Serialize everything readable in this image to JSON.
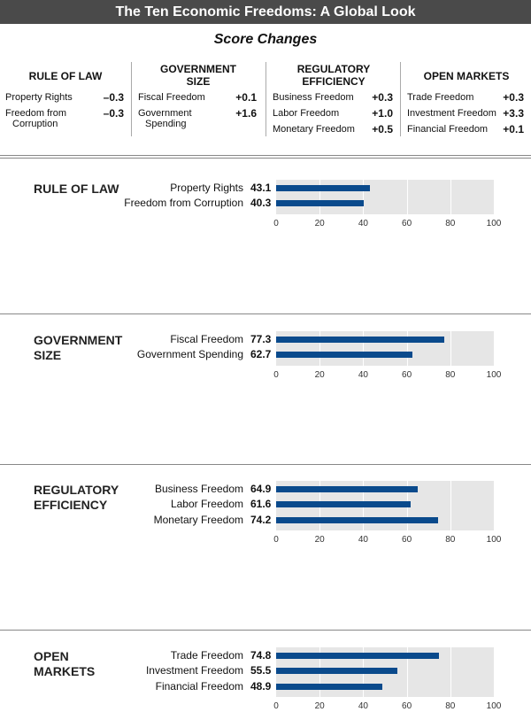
{
  "title": "The Ten Economic Freedoms: A Global Look",
  "subtitle": "Score Changes",
  "changes": [
    {
      "head": [
        "RULE OF LAW"
      ],
      "rows": [
        {
          "label": [
            "Property Rights"
          ],
          "value": "–0.3"
        },
        {
          "label": [
            "Freedom from",
            "Corruption"
          ],
          "value": "–0.3"
        }
      ]
    },
    {
      "head": [
        "GOVERNMENT",
        "SIZE"
      ],
      "rows": [
        {
          "label": [
            "Fiscal Freedom"
          ],
          "value": "+0.1"
        },
        {
          "label": [
            "Government",
            "Spending"
          ],
          "value": "+1.6"
        }
      ]
    },
    {
      "head": [
        "REGULATORY",
        "EFFICIENCY"
      ],
      "rows": [
        {
          "label": [
            "Business Freedom"
          ],
          "value": "+0.3"
        },
        {
          "label": [
            "Labor Freedom"
          ],
          "value": "+1.0"
        },
        {
          "label": [
            "Monetary Freedom"
          ],
          "value": "+0.5"
        }
      ]
    },
    {
      "head": [
        "OPEN MARKETS"
      ],
      "rows": [
        {
          "label": [
            "Trade Freedom"
          ],
          "value": "+0.3"
        },
        {
          "label": [
            "Investment Freedom"
          ],
          "value": "+3.3"
        },
        {
          "label": [
            "Financial Freedom"
          ],
          "value": "+0.1"
        }
      ]
    }
  ],
  "chart_data": [
    {
      "type": "bar",
      "orientation": "horizontal",
      "title": "RULE OF LAW",
      "categories": [
        "Property Rights",
        "Freedom from Corruption"
      ],
      "values": [
        43.1,
        40.3
      ],
      "xlim": [
        0,
        100
      ],
      "ticks": [
        0,
        20,
        40,
        60,
        80,
        100
      ],
      "grid": true
    },
    {
      "type": "bar",
      "orientation": "horizontal",
      "title": "GOVERNMENT SIZE",
      "categories": [
        "Fiscal Freedom",
        "Government Spending"
      ],
      "values": [
        77.3,
        62.7
      ],
      "xlim": [
        0,
        100
      ],
      "ticks": [
        0,
        20,
        40,
        60,
        80,
        100
      ],
      "grid": true
    },
    {
      "type": "bar",
      "orientation": "horizontal",
      "title": "REGULATORY EFFICIENCY",
      "categories": [
        "Business Freedom",
        "Labor Freedom",
        "Monetary Freedom"
      ],
      "values": [
        64.9,
        61.6,
        74.2
      ],
      "xlim": [
        0,
        100
      ],
      "ticks": [
        0,
        20,
        40,
        60,
        80,
        100
      ],
      "grid": true
    },
    {
      "type": "bar",
      "orientation": "horizontal",
      "title": "OPEN MARKETS",
      "categories": [
        "Trade Freedom",
        "Investment Freedom",
        "Financial Freedom"
      ],
      "values": [
        74.8,
        55.5,
        48.9
      ],
      "xlim": [
        0,
        100
      ],
      "ticks": [
        0,
        20,
        40,
        60,
        80,
        100
      ],
      "grid": true
    }
  ],
  "colors": {
    "bar": "#0a4a8c",
    "title_bar": "#4a4a4a",
    "plot_bg": "#e6e6e6"
  }
}
